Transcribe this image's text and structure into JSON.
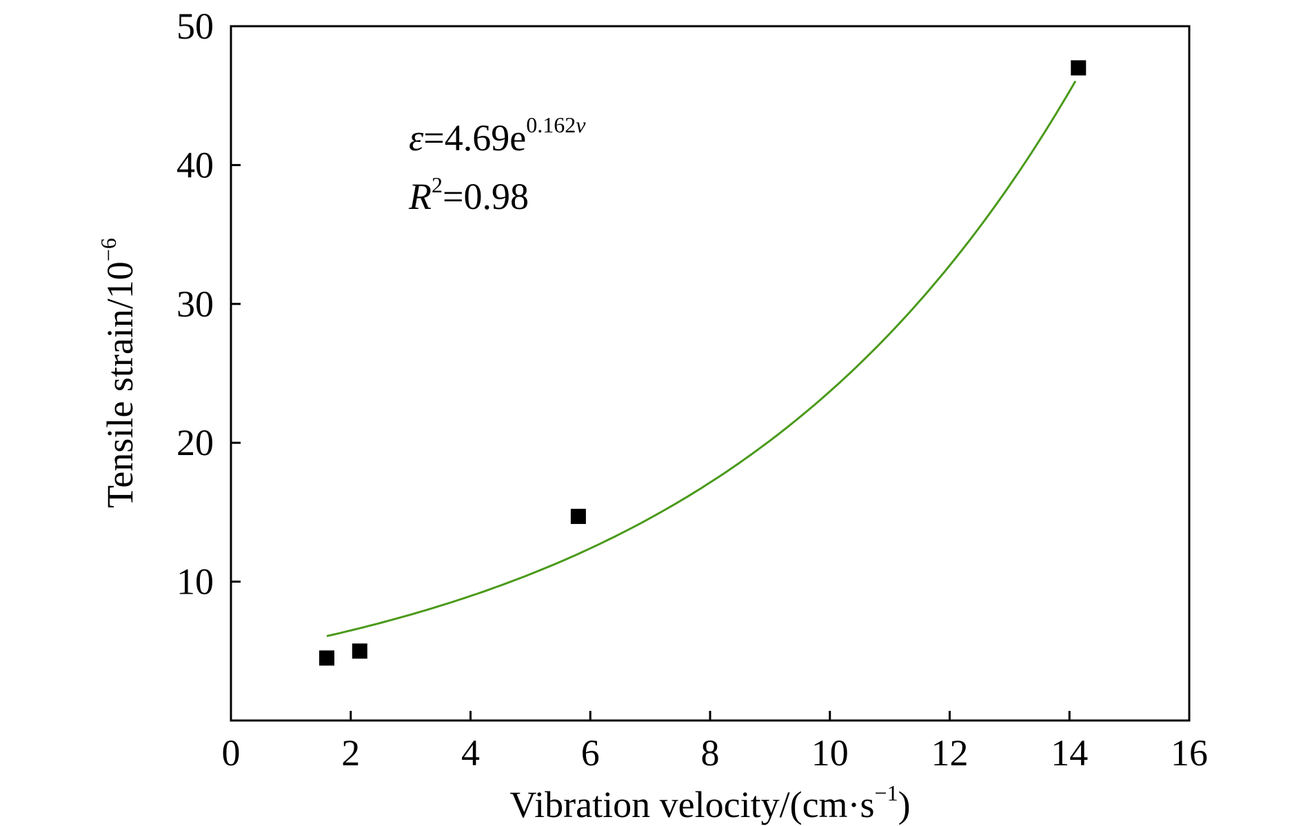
{
  "chart_data": {
    "type": "scatter",
    "xlabel": "Vibration velocity/(cm·s",
    "xlabel_sup": "−1",
    "xlabel_tail": ")",
    "ylabel": "Tensile strain/10",
    "ylabel_sup": "−6",
    "xlim": [
      0,
      16
    ],
    "ylim": [
      0,
      50
    ],
    "x_ticks": [
      0,
      2,
      4,
      6,
      8,
      10,
      12,
      14,
      16
    ],
    "x_tick_labels": [
      "0",
      "2",
      "4",
      "6",
      "8",
      "10",
      "12",
      "14",
      "16"
    ],
    "y_ticks": [
      10,
      20,
      30,
      40,
      50
    ],
    "y_tick_labels": [
      "10",
      "20",
      "30",
      "40",
      "50"
    ],
    "grid": false,
    "series": [
      {
        "type": "scatter",
        "marker": "square",
        "color": "#000000",
        "points": [
          {
            "x": 1.6,
            "y": 4.5
          },
          {
            "x": 2.15,
            "y": 5.0
          },
          {
            "x": 5.8,
            "y": 14.7
          },
          {
            "x": 14.15,
            "y": 47.0
          }
        ]
      },
      {
        "type": "line",
        "color": "#4a9a1a",
        "fit": {
          "kind": "exponential",
          "a": 4.69,
          "b": 0.162
        },
        "x_range": [
          1.6,
          14.1
        ]
      }
    ],
    "annotations": {
      "equation_var": "ε",
      "equation_main": "=4.69e",
      "equation_sup": "0.162",
      "equation_sup_var": "v",
      "r2_var": "R",
      "r2_sup": "2",
      "r2_value": "=0.98"
    }
  }
}
